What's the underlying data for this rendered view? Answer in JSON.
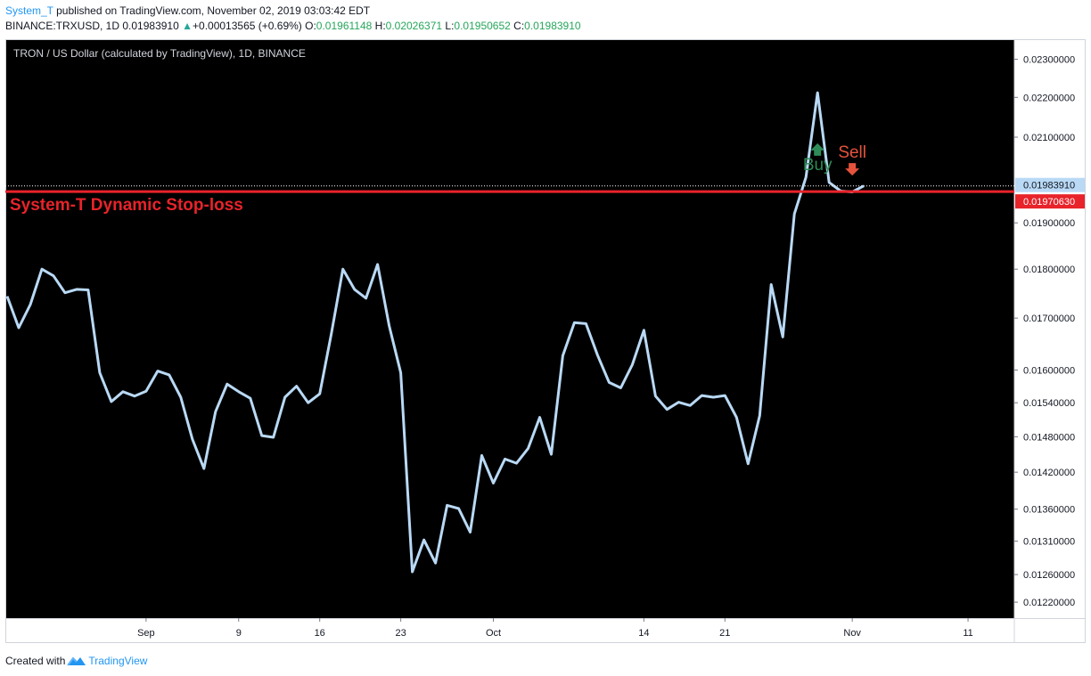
{
  "header": {
    "user": "System_T",
    "published_text": " published on TradingView.com, November 02, 2019 03:03:42 EDT",
    "symbol": "BINANCE:TRXUSD, 1D",
    "price": "0.01983910",
    "change": "+0.00013565 (+0.69%)",
    "o_label": "O:",
    "o_value": "0.01961148",
    "h_label": "H:",
    "h_value": "0.02026371",
    "l_label": "L:",
    "l_value": "0.01950652",
    "c_label": "C:",
    "c_value": "0.01983910"
  },
  "chart_title": "TRON / US Dollar (calculated by TradingView), 1D, BINANCE",
  "stop_loss_label": "System-T Dynamic Stop-loss",
  "buy_label": "Buy",
  "sell_label": "Sell",
  "footer": {
    "created_with": "Created with",
    "brand": "TradingView"
  },
  "colors": {
    "background": "#000000",
    "line": "#b9d9f5",
    "stop_loss": "#e8232a",
    "buy": "#2e8b57",
    "sell": "#e5533d",
    "axis_text": "#131722"
  },
  "chart_data": {
    "type": "line",
    "scale": "log",
    "ylim": [
      0.01205,
      0.0234
    ],
    "price_ticks": [
      "0.02300000",
      "0.02200000",
      "0.02100000",
      "0.01900000",
      "0.01800000",
      "0.01700000",
      "0.01600000",
      "0.01540000",
      "0.01480000",
      "0.01420000",
      "0.01360000",
      "0.01310000",
      "0.01260000",
      "0.01220000"
    ],
    "time_ticks": [
      {
        "label": "Sep",
        "day": 12
      },
      {
        "label": "9",
        "day": 20
      },
      {
        "label": "16",
        "day": 27
      },
      {
        "label": "23",
        "day": 34
      },
      {
        "label": "Oct",
        "day": 42
      },
      {
        "label": "14",
        "day": 55
      },
      {
        "label": "21",
        "day": 62
      },
      {
        "label": "Nov",
        "day": 73
      },
      {
        "label": "11",
        "day": 83
      }
    ],
    "x_range_days": [
      0,
      87
    ],
    "series": [
      {
        "values": [
          0.01744,
          0.01681,
          0.01727,
          0.018,
          0.01786,
          0.01751,
          0.01758,
          0.01757,
          0.01595,
          0.01542,
          0.0156,
          0.01552,
          0.01561,
          0.01598,
          0.01591,
          0.0155,
          0.01476,
          0.01426,
          0.01524,
          0.01574,
          0.0156,
          0.01548,
          0.01482,
          0.01479,
          0.0155,
          0.0157,
          0.0154,
          0.01556,
          0.01669,
          0.018,
          0.01758,
          0.0174,
          0.0181,
          0.01685,
          0.01595,
          0.01264,
          0.01312,
          0.01277,
          0.01366,
          0.01361,
          0.01324,
          0.01448,
          0.01402,
          0.01442,
          0.01435,
          0.0146,
          0.01514,
          0.0145,
          0.01627,
          0.01691,
          0.01689,
          0.01628,
          0.01577,
          0.01567,
          0.0161,
          0.01676,
          0.01552,
          0.01528,
          0.01541,
          0.01535,
          0.01553,
          0.0155,
          0.01553,
          0.01514,
          0.01434,
          0.01517,
          0.01768,
          0.01663,
          0.0192,
          0.02004,
          0.02212,
          0.01992,
          0.01972,
          0.0197,
          0.01984
        ]
      }
    ],
    "stop_loss": 0.0197063,
    "last_price": 0.0198391,
    "last_price_label": "0.01983910",
    "stop_loss_price_label": "0.01970630"
  }
}
